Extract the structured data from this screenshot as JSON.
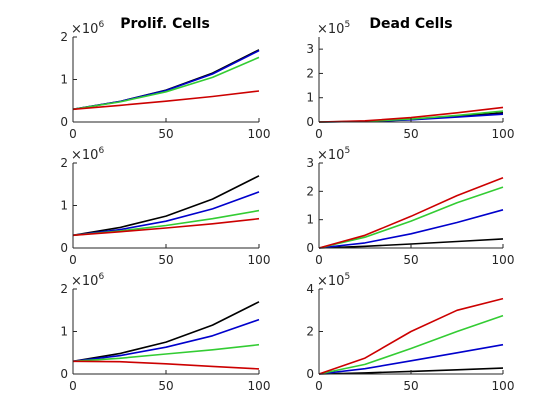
{
  "colors": {
    "black": "#000000",
    "blue": "#0000cc",
    "green": "#33cc33",
    "red": "#cc0000",
    "axis": "#262626"
  },
  "titles": {
    "left": "Prolif. Cells",
    "right": "Dead Cells"
  },
  "chart_data": [
    {
      "type": "line",
      "panel": "row1-left",
      "title": "Prolif. Cells",
      "exponent": "6",
      "x": [
        0,
        25,
        50,
        75,
        100
      ],
      "xlim": [
        0,
        100
      ],
      "ylim": [
        0,
        2
      ],
      "xticks": [
        0,
        50,
        100
      ],
      "yticks": [
        0,
        1,
        2
      ],
      "ylabels": [
        "0",
        "1",
        "2"
      ],
      "series": [
        {
          "color": "black",
          "values": [
            0.3,
            0.48,
            0.75,
            1.15,
            1.7
          ]
        },
        {
          "color": "blue",
          "values": [
            0.3,
            0.48,
            0.74,
            1.13,
            1.68
          ]
        },
        {
          "color": "green",
          "values": [
            0.3,
            0.47,
            0.71,
            1.05,
            1.52
          ]
        },
        {
          "color": "red",
          "values": [
            0.3,
            0.39,
            0.49,
            0.6,
            0.73
          ]
        }
      ]
    },
    {
      "type": "line",
      "panel": "row1-right",
      "title": "Dead Cells",
      "exponent": "5",
      "x": [
        0,
        25,
        50,
        75,
        100
      ],
      "xlim": [
        0,
        100
      ],
      "ylim": [
        0,
        3.5
      ],
      "xticks": [
        0,
        50,
        100
      ],
      "yticks": [
        0,
        1,
        2,
        3
      ],
      "ylabels": [
        "0",
        "1",
        "2",
        "3"
      ],
      "series": [
        {
          "color": "black",
          "values": [
            0,
            0.02,
            0.1,
            0.23,
            0.38
          ]
        },
        {
          "color": "blue",
          "values": [
            0,
            0.02,
            0.09,
            0.2,
            0.32
          ]
        },
        {
          "color": "green",
          "values": [
            0,
            0.03,
            0.12,
            0.27,
            0.45
          ]
        },
        {
          "color": "red",
          "values": [
            0,
            0.05,
            0.18,
            0.38,
            0.6
          ]
        }
      ]
    },
    {
      "type": "line",
      "panel": "row2-left",
      "exponent": "6",
      "x": [
        0,
        25,
        50,
        75,
        100
      ],
      "xlim": [
        0,
        100
      ],
      "ylim": [
        0,
        2
      ],
      "xticks": [
        0,
        50,
        100
      ],
      "yticks": [
        0,
        1,
        2
      ],
      "ylabels": [
        "0",
        "1",
        "2"
      ],
      "series": [
        {
          "color": "black",
          "values": [
            0.3,
            0.48,
            0.75,
            1.15,
            1.7
          ]
        },
        {
          "color": "blue",
          "values": [
            0.3,
            0.43,
            0.63,
            0.92,
            1.32
          ]
        },
        {
          "color": "green",
          "values": [
            0.3,
            0.4,
            0.53,
            0.69,
            0.88
          ]
        },
        {
          "color": "red",
          "values": [
            0.3,
            0.38,
            0.47,
            0.57,
            0.69
          ]
        }
      ]
    },
    {
      "type": "line",
      "panel": "row2-right",
      "exponent": "5",
      "x": [
        0,
        25,
        50,
        75,
        100
      ],
      "xlim": [
        0,
        100
      ],
      "ylim": [
        0,
        3
      ],
      "xticks": [
        0,
        50,
        100
      ],
      "yticks": [
        0,
        1,
        2,
        3
      ],
      "ylabels": [
        "0",
        "1",
        "2",
        "3"
      ],
      "series": [
        {
          "color": "black",
          "values": [
            0,
            0.06,
            0.14,
            0.23,
            0.32
          ]
        },
        {
          "color": "blue",
          "values": [
            0,
            0.18,
            0.5,
            0.9,
            1.35
          ]
        },
        {
          "color": "green",
          "values": [
            0,
            0.38,
            0.95,
            1.6,
            2.15
          ]
        },
        {
          "color": "red",
          "values": [
            0,
            0.45,
            1.12,
            1.85,
            2.48
          ]
        }
      ]
    },
    {
      "type": "line",
      "panel": "row3-left",
      "exponent": "6",
      "x": [
        0,
        25,
        50,
        75,
        100
      ],
      "xlim": [
        0,
        100
      ],
      "ylim": [
        0,
        2
      ],
      "xticks": [
        0,
        50,
        100
      ],
      "yticks": [
        0,
        1,
        2
      ],
      "ylabels": [
        "0",
        "1",
        "2"
      ],
      "series": [
        {
          "color": "black",
          "values": [
            0.3,
            0.48,
            0.75,
            1.15,
            1.7
          ]
        },
        {
          "color": "blue",
          "values": [
            0.3,
            0.43,
            0.63,
            0.9,
            1.28
          ]
        },
        {
          "color": "green",
          "values": [
            0.3,
            0.37,
            0.47,
            0.57,
            0.69
          ]
        },
        {
          "color": "red",
          "values": [
            0.3,
            0.29,
            0.24,
            0.18,
            0.12
          ]
        }
      ]
    },
    {
      "type": "line",
      "panel": "row3-right",
      "exponent": "5",
      "x": [
        0,
        25,
        50,
        75,
        100
      ],
      "xlim": [
        0,
        100
      ],
      "ylim": [
        0,
        4
      ],
      "xticks": [
        0,
        50,
        100
      ],
      "yticks": [
        0,
        2,
        4
      ],
      "ylabels": [
        "0",
        "2",
        "4"
      ],
      "series": [
        {
          "color": "black",
          "values": [
            0,
            0.05,
            0.12,
            0.2,
            0.28
          ]
        },
        {
          "color": "blue",
          "values": [
            0,
            0.25,
            0.62,
            1.0,
            1.38
          ]
        },
        {
          "color": "green",
          "values": [
            0,
            0.45,
            1.2,
            2.0,
            2.75
          ]
        },
        {
          "color": "red",
          "values": [
            0,
            0.75,
            2.0,
            3.0,
            3.55
          ]
        }
      ]
    }
  ]
}
